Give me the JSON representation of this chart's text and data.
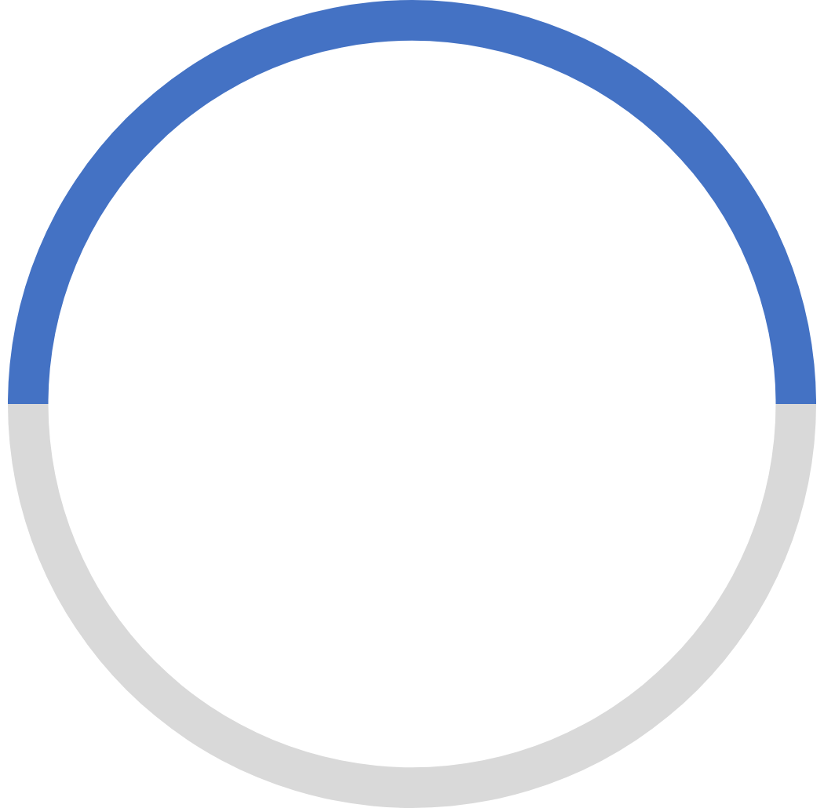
{
  "chart_data": {
    "type": "donut",
    "categories": [
      null,
      null
    ],
    "values": [
      50,
      50
    ],
    "colors": [
      "#4472c4",
      "#d9d9d9"
    ],
    "legend": false
  }
}
